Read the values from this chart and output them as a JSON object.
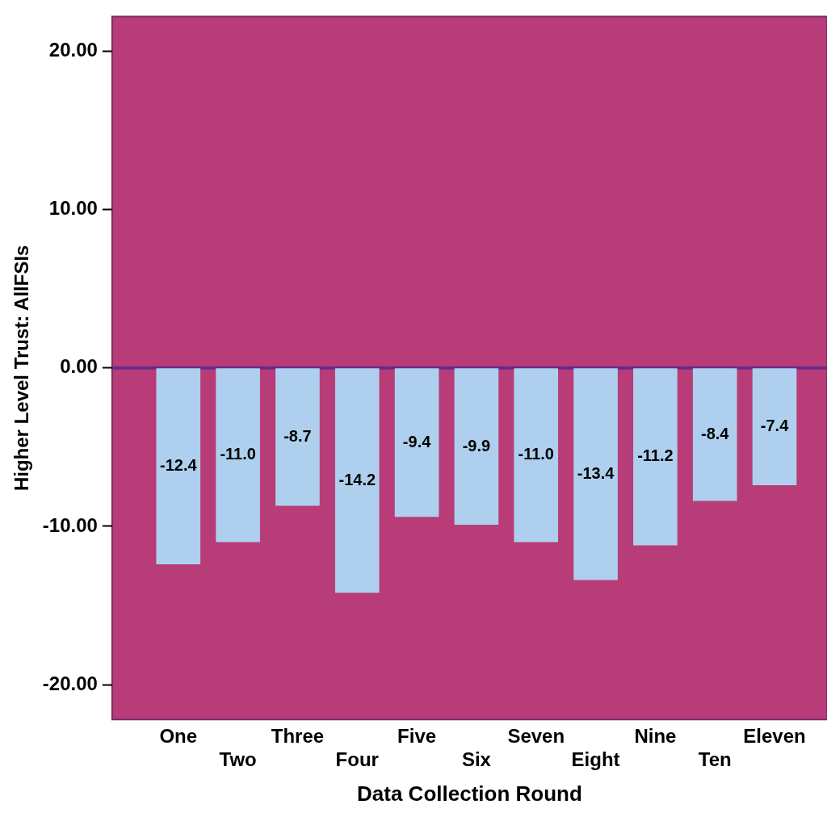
{
  "chart_data": {
    "type": "bar",
    "xlabel": "Data Collection Round",
    "ylabel": "Higher Level Trust: AllFSIs",
    "categories": [
      "One",
      "Two",
      "Three",
      "Four",
      "Five",
      "Six",
      "Seven",
      "Eight",
      "Nine",
      "Ten",
      "Eleven"
    ],
    "values": [
      -12.4,
      -11.0,
      -8.7,
      -14.2,
      -9.4,
      -9.9,
      -11.0,
      -13.4,
      -11.2,
      -8.4,
      -7.4
    ],
    "value_labels": [
      "-12.4",
      "-11.0",
      "-8.7",
      "-14.2",
      "-9.4",
      "-9.9",
      "-11.0",
      "-13.4",
      "-11.2",
      "-8.4",
      "-7.4"
    ],
    "color": "#aed0ee",
    "ylim": [
      -22.2,
      22.2
    ],
    "yticks": [
      {
        "value": -20,
        "label": "-20.00"
      },
      {
        "value": -10,
        "label": "-10.00"
      },
      {
        "value": 0,
        "label": "0.00"
      },
      {
        "value": 10,
        "label": "10.00"
      },
      {
        "value": 20,
        "label": "20.00"
      }
    ],
    "ref_lines": [
      {
        "axis": "y",
        "value": 0,
        "color": "#6a2a8a"
      }
    ],
    "grid": false,
    "legend": false
  }
}
